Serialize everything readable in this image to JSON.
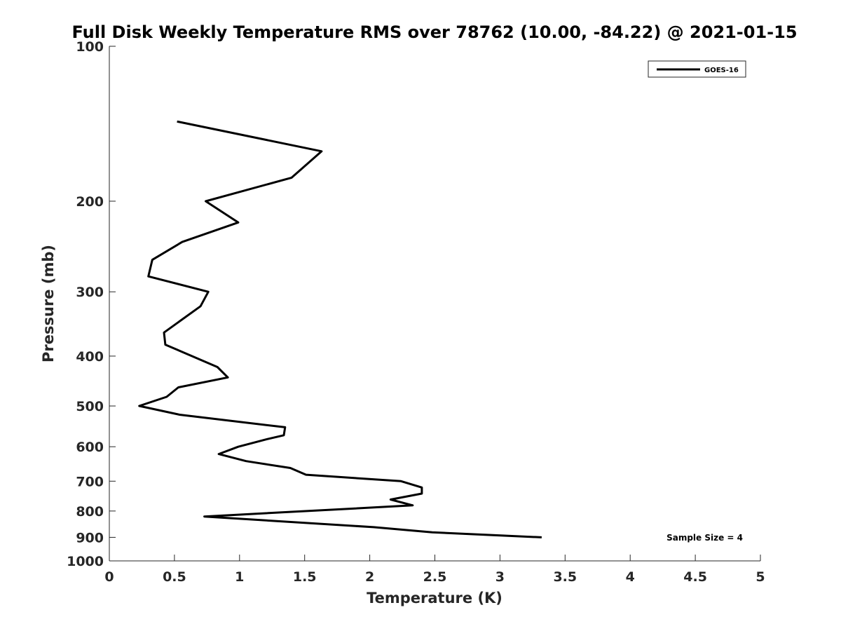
{
  "chart_data": {
    "type": "line",
    "title": "Full Disk Weekly Temperature RMS over 78762 (10.00, -84.22) @ 2021-01-15",
    "xlabel": "Temperature (K)",
    "ylabel": "Pressure (mb)",
    "xlim": [
      0,
      5
    ],
    "ylim": [
      100,
      1000
    ],
    "y_scale": "log",
    "y_reversed": true,
    "xticks": [
      0,
      0.5,
      1,
      1.5,
      2,
      2.5,
      3,
      3.5,
      4,
      4.5,
      5
    ],
    "xtick_labels": [
      "0",
      "0.5",
      "1",
      "1.5",
      "2",
      "2.5",
      "3",
      "3.5",
      "4",
      "4.5",
      "5"
    ],
    "yticks": [
      100,
      200,
      300,
      400,
      500,
      600,
      700,
      800,
      900,
      1000
    ],
    "ytick_labels": [
      "100",
      "200",
      "300",
      "400",
      "500",
      "600",
      "700",
      "800",
      "900",
      "1000"
    ],
    "grid": false,
    "legend_position": "top-right",
    "series": [
      {
        "name": "GOES-16",
        "color": "#000000",
        "points": [
          {
            "x": 0.52,
            "p": 140
          },
          {
            "x": 1.63,
            "p": 160
          },
          {
            "x": 1.4,
            "p": 180
          },
          {
            "x": 0.74,
            "p": 200
          },
          {
            "x": 0.99,
            "p": 220
          },
          {
            "x": 0.56,
            "p": 240
          },
          {
            "x": 0.33,
            "p": 260
          },
          {
            "x": 0.3,
            "p": 280
          },
          {
            "x": 0.76,
            "p": 300
          },
          {
            "x": 0.7,
            "p": 320
          },
          {
            "x": 0.42,
            "p": 360
          },
          {
            "x": 0.43,
            "p": 380
          },
          {
            "x": 0.83,
            "p": 420
          },
          {
            "x": 0.91,
            "p": 440
          },
          {
            "x": 0.53,
            "p": 460
          },
          {
            "x": 0.44,
            "p": 480
          },
          {
            "x": 0.23,
            "p": 500
          },
          {
            "x": 0.54,
            "p": 520
          },
          {
            "x": 1.35,
            "p": 550
          },
          {
            "x": 1.34,
            "p": 570
          },
          {
            "x": 1.21,
            "p": 580
          },
          {
            "x": 0.99,
            "p": 600
          },
          {
            "x": 0.84,
            "p": 620
          },
          {
            "x": 1.05,
            "p": 640
          },
          {
            "x": 1.39,
            "p": 660
          },
          {
            "x": 1.51,
            "p": 680
          },
          {
            "x": 2.24,
            "p": 700
          },
          {
            "x": 2.4,
            "p": 720
          },
          {
            "x": 2.4,
            "p": 740
          },
          {
            "x": 2.16,
            "p": 760
          },
          {
            "x": 2.33,
            "p": 780
          },
          {
            "x": 0.73,
            "p": 820
          },
          {
            "x": 2.03,
            "p": 860
          },
          {
            "x": 2.48,
            "p": 880
          },
          {
            "x": 3.32,
            "p": 900
          }
        ]
      }
    ],
    "annotations": [
      "Sample Size = 4"
    ]
  }
}
